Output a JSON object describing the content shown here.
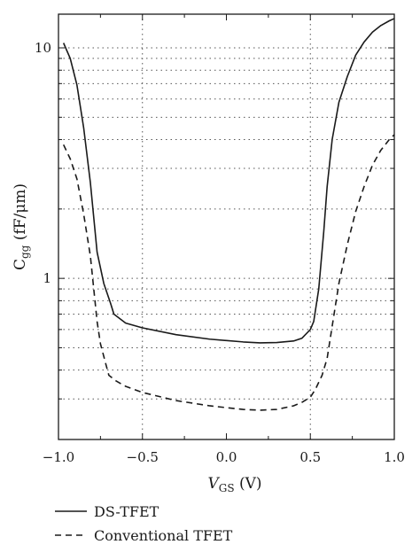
{
  "chart_data": {
    "type": "line",
    "x_scale": "linear",
    "y_scale": "log",
    "xlim": [
      -1.0,
      1.0
    ],
    "ylim": [
      0.2,
      14
    ],
    "grid": true,
    "legend_position": "below",
    "xlabel": {
      "main": "V",
      "sub": "GS",
      "unit": " (V)"
    },
    "ylabel": {
      "main": "C",
      "sub": "gg",
      "unit": " (fF/μm)"
    },
    "xticks": [
      {
        "value": -1.0,
        "label": "−1.0"
      },
      {
        "value": -0.5,
        "label": "−0.5"
      },
      {
        "value": 0.0,
        "label": "0.0"
      },
      {
        "value": 0.5,
        "label": "0.5"
      },
      {
        "value": 1.0,
        "label": "1.0"
      }
    ],
    "yticks": [
      {
        "value": 1,
        "label": "1"
      },
      {
        "value": 10,
        "label": "10"
      }
    ],
    "series": [
      {
        "name": "DS-TFET",
        "style": "solid",
        "color": "#1a1a1a",
        "x": [
          -0.97,
          -0.93,
          -0.89,
          -0.85,
          -0.81,
          -0.77,
          -0.73,
          -0.69,
          -0.67,
          -0.6,
          -0.5,
          -0.3,
          -0.1,
          0.1,
          0.2,
          0.3,
          0.4,
          0.45,
          0.5,
          0.52,
          0.55,
          0.58,
          0.6,
          0.63,
          0.67,
          0.72,
          0.77,
          0.82,
          0.87,
          0.92,
          0.97,
          1.0
        ],
        "y": [
          10.5,
          9.0,
          6.9,
          4.5,
          2.6,
          1.3,
          0.95,
          0.78,
          0.7,
          0.64,
          0.61,
          0.57,
          0.545,
          0.53,
          0.525,
          0.527,
          0.535,
          0.55,
          0.6,
          0.65,
          0.9,
          1.6,
          2.5,
          4.0,
          5.8,
          7.5,
          9.3,
          10.6,
          11.7,
          12.5,
          13.1,
          13.4
        ]
      },
      {
        "name": "Conventional TFET",
        "style": "dashed",
        "color": "#1a1a1a",
        "x": [
          -0.97,
          -0.93,
          -0.89,
          -0.85,
          -0.81,
          -0.77,
          -0.75,
          -0.72,
          -0.7,
          -0.66,
          -0.6,
          -0.5,
          -0.3,
          -0.1,
          0.1,
          0.2,
          0.3,
          0.4,
          0.45,
          0.5,
          0.53,
          0.57,
          0.6,
          0.63,
          0.67,
          0.72,
          0.77,
          0.82,
          0.87,
          0.92,
          0.97,
          1.0
        ],
        "y": [
          3.8,
          3.3,
          2.7,
          1.9,
          1.25,
          0.65,
          0.52,
          0.43,
          0.38,
          0.36,
          0.34,
          0.32,
          0.295,
          0.28,
          0.27,
          0.268,
          0.27,
          0.28,
          0.29,
          0.305,
          0.33,
          0.38,
          0.45,
          0.62,
          0.95,
          1.4,
          1.95,
          2.5,
          3.1,
          3.6,
          4.0,
          4.2
        ]
      }
    ]
  }
}
